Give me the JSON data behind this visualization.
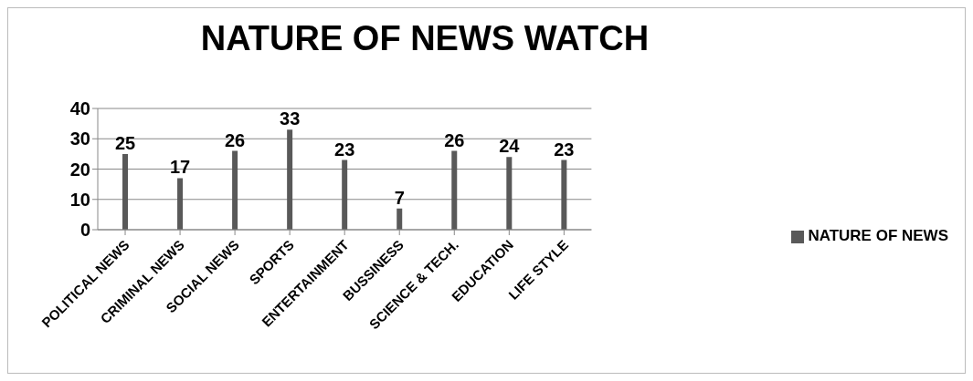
{
  "chart_data": {
    "type": "bar",
    "title": "NATURE OF NEWS WATCH",
    "categories": [
      "POLITICAL NEWS",
      "CRIMINAL NEWS",
      "SOCIAL NEWS",
      "SPORTS",
      "ENTERTAINMENT",
      "BUSSINESS",
      "SCIENCE & TECH.",
      "EDUCATION",
      "LIFE STYLE"
    ],
    "series": [
      {
        "name": "NATURE OF NEWS",
        "color": "#595959",
        "values": [
          25,
          17,
          26,
          33,
          23,
          7,
          26,
          24,
          23
        ]
      }
    ],
    "ylim": [
      0,
      40
    ],
    "yticks": [
      0,
      10,
      20,
      30,
      40
    ],
    "grid": "y",
    "legend": "right",
    "data_labels": true
  }
}
